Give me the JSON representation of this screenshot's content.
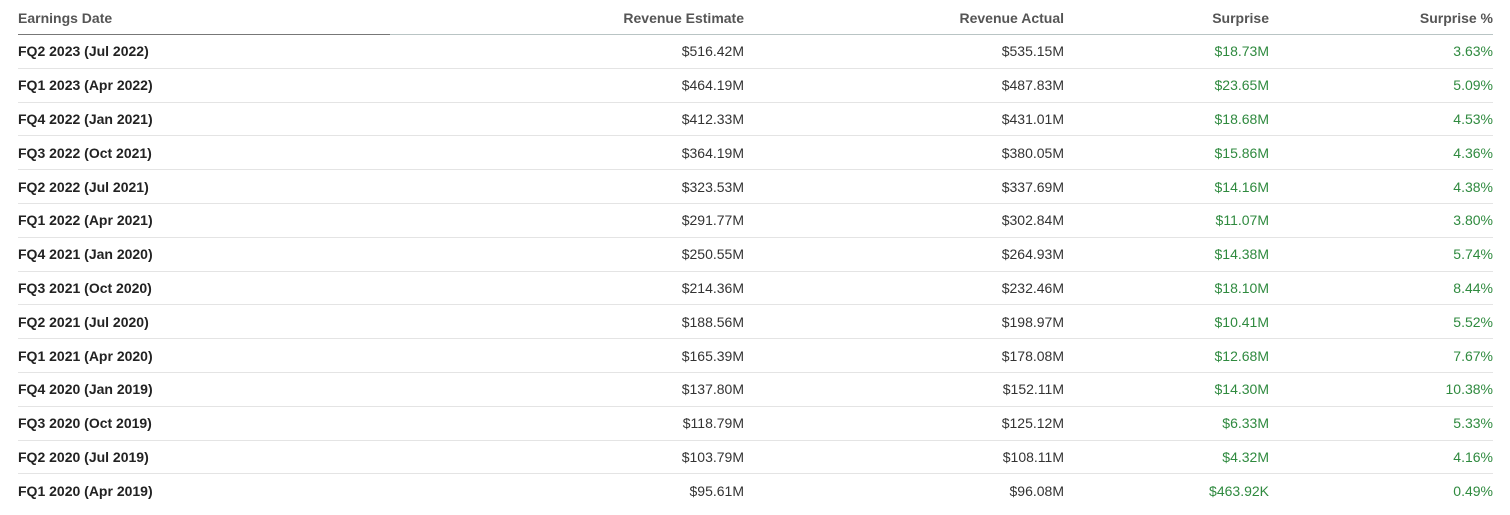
{
  "colors": {
    "positive": "#2f8a3f",
    "header_text": "#555555"
  },
  "table": {
    "headers": {
      "date": "Earnings Date",
      "estimate": "Revenue Estimate",
      "actual": "Revenue Actual",
      "surprise": "Surprise",
      "surprise_pct": "Surprise %"
    },
    "rows": [
      {
        "date": "FQ2 2023 (Jul 2022)",
        "estimate": "$516.42M",
        "actual": "$535.15M",
        "surprise": "$18.73M",
        "surprise_pct": "3.63%"
      },
      {
        "date": "FQ1 2023 (Apr 2022)",
        "estimate": "$464.19M",
        "actual": "$487.83M",
        "surprise": "$23.65M",
        "surprise_pct": "5.09%"
      },
      {
        "date": "FQ4 2022 (Jan 2021)",
        "estimate": "$412.33M",
        "actual": "$431.01M",
        "surprise": "$18.68M",
        "surprise_pct": "4.53%"
      },
      {
        "date": "FQ3 2022 (Oct 2021)",
        "estimate": "$364.19M",
        "actual": "$380.05M",
        "surprise": "$15.86M",
        "surprise_pct": "4.36%"
      },
      {
        "date": "FQ2 2022 (Jul 2021)",
        "estimate": "$323.53M",
        "actual": "$337.69M",
        "surprise": "$14.16M",
        "surprise_pct": "4.38%"
      },
      {
        "date": "FQ1 2022 (Apr 2021)",
        "estimate": "$291.77M",
        "actual": "$302.84M",
        "surprise": "$11.07M",
        "surprise_pct": "3.80%"
      },
      {
        "date": "FQ4 2021 (Jan 2020)",
        "estimate": "$250.55M",
        "actual": "$264.93M",
        "surprise": "$14.38M",
        "surprise_pct": "5.74%"
      },
      {
        "date": "FQ3 2021 (Oct 2020)",
        "estimate": "$214.36M",
        "actual": "$232.46M",
        "surprise": "$18.10M",
        "surprise_pct": "8.44%"
      },
      {
        "date": "FQ2 2021 (Jul 2020)",
        "estimate": "$188.56M",
        "actual": "$198.97M",
        "surprise": "$10.41M",
        "surprise_pct": "5.52%"
      },
      {
        "date": "FQ1 2021 (Apr 2020)",
        "estimate": "$165.39M",
        "actual": "$178.08M",
        "surprise": "$12.68M",
        "surprise_pct": "7.67%"
      },
      {
        "date": "FQ4 2020 (Jan 2019)",
        "estimate": "$137.80M",
        "actual": "$152.11M",
        "surprise": "$14.30M",
        "surprise_pct": "10.38%"
      },
      {
        "date": "FQ3 2020 (Oct 2019)",
        "estimate": "$118.79M",
        "actual": "$125.12M",
        "surprise": "$6.33M",
        "surprise_pct": "5.33%"
      },
      {
        "date": "FQ2 2020 (Jul 2019)",
        "estimate": "$103.79M",
        "actual": "$108.11M",
        "surprise": "$4.32M",
        "surprise_pct": "4.16%"
      },
      {
        "date": "FQ1 2020 (Apr 2019)",
        "estimate": "$95.61M",
        "actual": "$96.08M",
        "surprise": "$463.92K",
        "surprise_pct": "0.49%"
      }
    ]
  }
}
